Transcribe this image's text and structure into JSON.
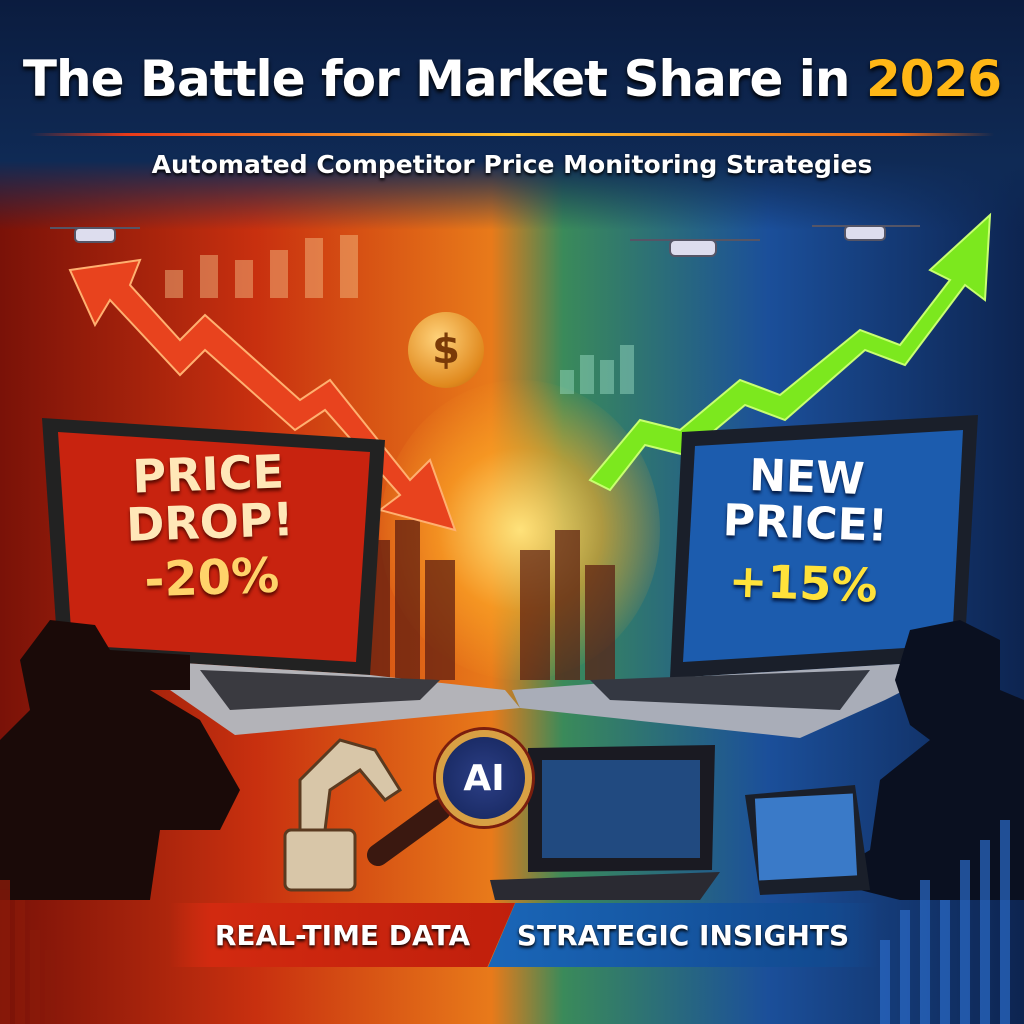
{
  "header": {
    "title_main": "The Battle for Market Share in",
    "title_year": "2026",
    "subtitle": "Automated Competitor Price Monitoring Strategies"
  },
  "left_laptop": {
    "line1": "PRICE",
    "line2": "DROP!",
    "change": "-20%"
  },
  "right_laptop": {
    "line1": "NEW",
    "line2": "PRICE!",
    "change": "+15%"
  },
  "center": {
    "badge": "AI",
    "coin_symbol": "$"
  },
  "banners": {
    "left": "REAL-TIME DATA",
    "right": "STRATEGIC INSIGHTS"
  },
  "colors": {
    "accent_red": "#d22a10",
    "accent_blue": "#1a66b8",
    "accent_gold": "#ffb716",
    "arrow_green": "#6fe01a"
  },
  "icons": [
    "drone-icon",
    "down-trend-arrow-icon",
    "up-trend-arrow-icon",
    "dollar-coin-icon",
    "magnifier-icon",
    "robot-arm-icon",
    "binoculars-icon"
  ]
}
